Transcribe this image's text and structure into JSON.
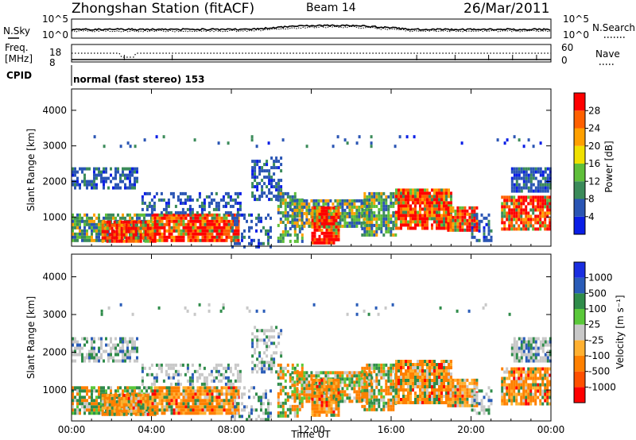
{
  "header": {
    "station": "Zhongshan Station (fitACF)",
    "beam": "Beam 14",
    "date": "26/Mar/2011"
  },
  "noise_panel": {
    "left_label": "N.Sky",
    "right_label": "N.Search",
    "yticks": [
      "10^5",
      "10^0"
    ]
  },
  "freq_panel": {
    "left_label_1": "Freq.",
    "left_label_2": "[MHz]",
    "yticks_left": [
      "18",
      "8"
    ],
    "right_label": "Nave",
    "yticks_right": [
      "60",
      "0"
    ]
  },
  "cpid_panel": {
    "label": "CPID",
    "mode_text": "normal (fast stereo) 153"
  },
  "colors": {
    "power_scale": [
      "#0a1ee6",
      "#2a55b4",
      "#3b8b5a",
      "#5fbf3a",
      "#f0e000",
      "#ffa000",
      "#ff6000",
      "#ff0000"
    ],
    "velocity_scale": [
      "#1a2ee0",
      "#2a5cb8",
      "#2f8c4a",
      "#5ac83a",
      "#c8c8c8",
      "#ffb030",
      "#ff8000",
      "#ff5000",
      "#ff0000"
    ]
  },
  "chart_data": [
    {
      "type": "heatmap",
      "name": "power",
      "xlabel": "",
      "ylabel": "Slant Range [km]",
      "x_ticks": [
        "00:00",
        "04:00",
        "08:00",
        "12:00",
        "16:00",
        "20:00",
        "00:00"
      ],
      "xlim_hours": [
        0,
        24
      ],
      "ylim_km": [
        180,
        4600
      ],
      "y_ticks": [
        "1000",
        "2000",
        "3000",
        "4000"
      ],
      "colorbar": {
        "label": "Power [dB]",
        "min": 0,
        "max": 32,
        "ticks": [
          "4",
          "8",
          "12",
          "16",
          "20",
          "24",
          "28"
        ]
      }
    },
    {
      "type": "heatmap",
      "name": "velocity",
      "xlabel": "Time UT",
      "ylabel": "Slant Range [km]",
      "x_ticks": [
        "00:00",
        "04:00",
        "08:00",
        "12:00",
        "16:00",
        "20:00",
        "00:00"
      ],
      "xlim_hours": [
        0,
        24
      ],
      "ylim_km": [
        180,
        4600
      ],
      "y_ticks": [
        "1000",
        "2000",
        "3000",
        "4000"
      ],
      "colorbar": {
        "label": "Velocity [m s⁻¹]",
        "ticks": [
          "1000",
          "500",
          "100",
          "25",
          "-25",
          "-100",
          "-500",
          "-1000"
        ]
      }
    }
  ]
}
